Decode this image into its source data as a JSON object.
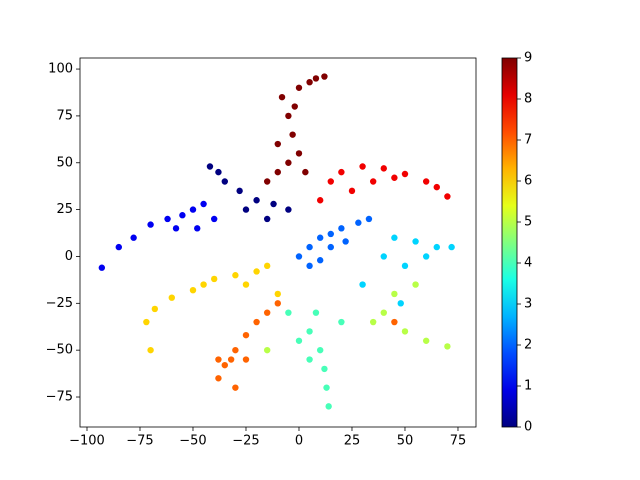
{
  "chart_data": {
    "type": "scatter",
    "cmap": "jet",
    "x": [
      -10,
      -5,
      -8,
      0,
      5,
      12,
      -5,
      -3,
      0,
      -10,
      -15,
      3,
      -2,
      8,
      15,
      20,
      30,
      40,
      50,
      60,
      65,
      70,
      25,
      35,
      45,
      10,
      -42,
      -35,
      -28,
      -20,
      -12,
      -25,
      -15,
      -38,
      -5,
      -93,
      -85,
      -78,
      -70,
      -62,
      -55,
      -50,
      -45,
      -58,
      -48,
      -40,
      5,
      10,
      15,
      20,
      28,
      33,
      5,
      10,
      15,
      0,
      22,
      45,
      55,
      65,
      72,
      50,
      40,
      60,
      48,
      30,
      5,
      10,
      12,
      13,
      14,
      5,
      0,
      8,
      20,
      -5,
      40,
      50,
      60,
      70,
      45,
      35,
      55,
      -15,
      -70,
      -72,
      -68,
      -60,
      -50,
      -40,
      -30,
      -20,
      -15,
      -25,
      -10,
      -45,
      -38,
      -35,
      -30,
      -25,
      -20,
      -15,
      -32,
      -38,
      -25,
      -10,
      -30,
      45
    ],
    "y": [
      60,
      75,
      85,
      90,
      93,
      96,
      50,
      65,
      55,
      45,
      40,
      45,
      80,
      95,
      40,
      45,
      48,
      47,
      44,
      40,
      37,
      32,
      35,
      40,
      42,
      30,
      48,
      40,
      35,
      30,
      28,
      25,
      20,
      45,
      25,
      -6,
      5,
      10,
      17,
      20,
      22,
      25,
      28,
      15,
      15,
      20,
      5,
      10,
      12,
      15,
      18,
      20,
      -5,
      -2,
      5,
      0,
      8,
      10,
      8,
      5,
      5,
      -5,
      0,
      0,
      -25,
      -15,
      -40,
      -50,
      -60,
      -70,
      -80,
      -55,
      -45,
      -30,
      -35,
      -30,
      -30,
      -40,
      -45,
      -48,
      -20,
      -35,
      -15,
      -50,
      -50,
      -35,
      -28,
      -22,
      -18,
      -12,
      -10,
      -8,
      -5,
      -15,
      -20,
      -15,
      -65,
      -58,
      -50,
      -42,
      -35,
      -30,
      -55,
      -55,
      -55,
      -25,
      -70,
      -35
    ],
    "c": [
      9,
      9,
      9,
      9,
      9,
      9,
      9,
      9,
      9,
      9,
      9,
      9,
      9,
      9,
      8,
      8,
      8,
      8,
      8,
      8,
      8,
      8,
      8,
      8,
      8,
      8,
      0,
      0,
      0,
      0,
      0,
      0,
      0,
      0,
      0,
      1,
      1,
      1,
      1,
      1,
      1,
      1,
      1,
      1,
      1,
      1,
      2,
      2,
      2,
      2,
      2,
      2,
      2,
      2,
      2,
      2,
      2,
      3,
      3,
      3,
      3,
      3,
      3,
      3,
      3,
      3,
      4,
      4,
      4,
      4,
      4,
      4,
      4,
      4,
      4,
      4,
      5,
      5,
      5,
      5,
      5,
      5,
      5,
      5,
      6,
      6,
      6,
      6,
      6,
      6,
      6,
      6,
      6,
      6,
      6,
      6,
      7,
      7,
      7,
      7,
      7,
      7,
      7,
      7,
      7,
      7,
      7,
      7
    ],
    "xlim": [
      -103.3,
      83.5
    ],
    "xticks": [
      {
        "value": -100,
        "label": "−100"
      },
      {
        "value": -75,
        "label": "−75"
      },
      {
        "value": -50,
        "label": "−50"
      },
      {
        "value": -25,
        "label": "−25"
      },
      0,
      25,
      50,
      75
    ],
    "ylim": [
      -91,
      105.9
    ],
    "yticks": [
      {
        "value": -75,
        "label": "−75"
      },
      {
        "value": -50,
        "label": "−50"
      },
      {
        "value": -25,
        "label": "−25"
      },
      0,
      25,
      50,
      75,
      100
    ],
    "clim": [
      0,
      9
    ],
    "cticks": [
      0,
      1,
      2,
      3,
      4,
      5,
      6,
      7,
      8,
      9
    ]
  }
}
